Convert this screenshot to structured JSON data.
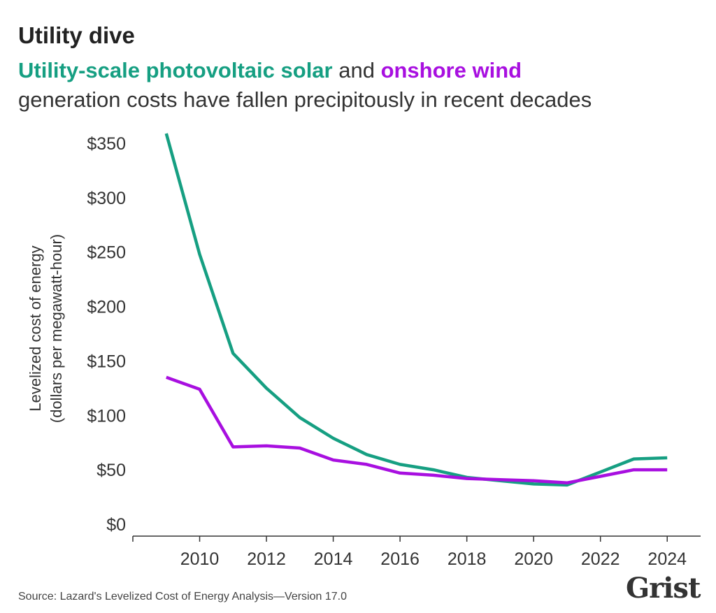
{
  "header": {
    "title": "Utility dive",
    "subtitle_solar": "Utility-scale photovoltaic solar",
    "subtitle_and": " and ",
    "subtitle_wind": "onshore wind",
    "subtitle_rest": "generation costs have fallen precipitously in recent decades"
  },
  "footer": {
    "source": "Source: Lazard's Levelized Cost of Energy Analysis—Version 17.0",
    "logo": "Grist"
  },
  "colors": {
    "solar": "#169f82",
    "wind": "#a80fe0",
    "axis": "#333333",
    "text": "#222222"
  },
  "chart_data": {
    "type": "line",
    "title": "Utility dive",
    "ylabel_line1": "Levelized cost of energy",
    "ylabel_line2": "(dollars per megawatt-hour)",
    "xlabel": "",
    "xlim": [
      2008,
      2025
    ],
    "ylim": [
      0,
      350
    ],
    "x_ticks": [
      2010,
      2012,
      2014,
      2016,
      2018,
      2020,
      2022,
      2024
    ],
    "y_ticks": [
      0,
      50,
      100,
      150,
      200,
      250,
      300,
      350
    ],
    "y_tick_labels": [
      "$0",
      "$50",
      "$100",
      "$150",
      "$200",
      "$250",
      "$300",
      "$350"
    ],
    "grid": false,
    "legend": "inline in subtitle",
    "x": [
      2009,
      2010,
      2011,
      2012,
      2013,
      2014,
      2015,
      2016,
      2017,
      2018,
      2019,
      2020,
      2021,
      2022,
      2023,
      2024
    ],
    "series": [
      {
        "name": "Utility-scale photovoltaic solar",
        "color": "#169f82",
        "values": [
          359,
          248,
          157,
          125,
          98,
          79,
          64,
          55,
          50,
          43,
          40,
          37,
          36,
          48,
          60,
          61
        ]
      },
      {
        "name": "onshore wind",
        "color": "#a80fe0",
        "values": [
          135,
          124,
          71,
          72,
          70,
          59,
          55,
          47,
          45,
          42,
          41,
          40,
          38,
          44,
          50,
          50
        ]
      }
    ]
  }
}
